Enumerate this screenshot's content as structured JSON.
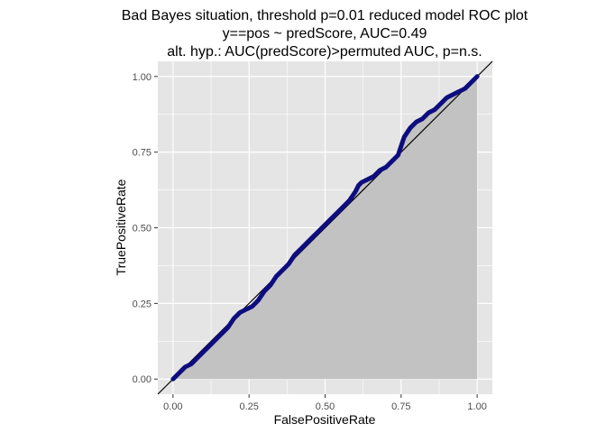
{
  "chart_data": {
    "type": "line",
    "title": [
      "Bad Bayes situation, threshold p=0.01 reduced model ROC plot",
      "y==pos ~ predScore, AUC=0.49",
      "alt. hyp.: AUC(predScore)>permuted AUC, p=n.s."
    ],
    "xlabel": "FalsePositiveRate",
    "ylabel": "TruePositiveRate",
    "xlim": [
      -0.05,
      1.05
    ],
    "ylim": [
      -0.05,
      1.05
    ],
    "x_ticks": [
      0.0,
      0.25,
      0.5,
      0.75,
      1.0
    ],
    "y_ticks": [
      0.0,
      0.25,
      0.5,
      0.75,
      1.0
    ],
    "x_tick_labels": [
      "0.00",
      "0.25",
      "0.50",
      "0.75",
      "1.00"
    ],
    "y_tick_labels": [
      "0.00",
      "0.25",
      "0.50",
      "0.75",
      "1.00"
    ],
    "grid": true,
    "shaded_area_under_curve": true,
    "reference_line": {
      "x": [
        -0.05,
        1.05
      ],
      "y": [
        -0.05,
        1.05
      ],
      "color": "#000000"
    },
    "colors": {
      "panel_background": "#e5e5e5",
      "grid": "#ffffff",
      "area_fill": "#c2c2c2",
      "curve": "#0d0d80",
      "reference_line": "#000000"
    },
    "series": [
      {
        "x": [
          0.0,
          0.02,
          0.04,
          0.06,
          0.08,
          0.1,
          0.12,
          0.15,
          0.18,
          0.2,
          0.22,
          0.24,
          0.26,
          0.28,
          0.3,
          0.32,
          0.34,
          0.36,
          0.38,
          0.4,
          0.42,
          0.44,
          0.46,
          0.48,
          0.5,
          0.52,
          0.54,
          0.56,
          0.58,
          0.6,
          0.61,
          0.62,
          0.64,
          0.66,
          0.68,
          0.7,
          0.72,
          0.74,
          0.75,
          0.76,
          0.78,
          0.8,
          0.82,
          0.84,
          0.86,
          0.88,
          0.9,
          0.92,
          0.94,
          0.96,
          0.98,
          1.0
        ],
        "y": [
          0.0,
          0.02,
          0.04,
          0.05,
          0.07,
          0.09,
          0.11,
          0.14,
          0.17,
          0.2,
          0.22,
          0.23,
          0.24,
          0.26,
          0.29,
          0.31,
          0.34,
          0.36,
          0.38,
          0.41,
          0.43,
          0.45,
          0.47,
          0.49,
          0.51,
          0.53,
          0.55,
          0.57,
          0.59,
          0.62,
          0.64,
          0.65,
          0.66,
          0.67,
          0.69,
          0.7,
          0.72,
          0.74,
          0.77,
          0.8,
          0.83,
          0.85,
          0.86,
          0.88,
          0.89,
          0.91,
          0.93,
          0.94,
          0.95,
          0.96,
          0.98,
          1.0
        ]
      }
    ]
  }
}
